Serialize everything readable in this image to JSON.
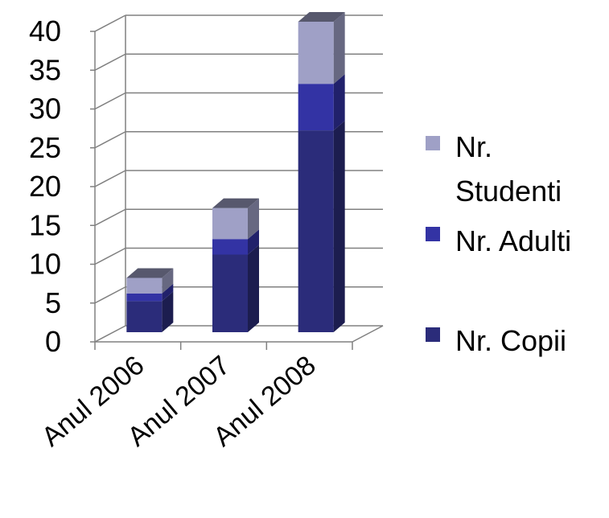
{
  "chart_data": {
    "type": "bar",
    "stacked": true,
    "three_d": true,
    "categories": [
      "Anul 2006",
      "Anul 2007",
      "Anul 2008"
    ],
    "series": [
      {
        "name": "Nr. Copii",
        "values": [
          4,
          10,
          26
        ],
        "color": "#2b2c7a"
      },
      {
        "name": "Nr. Adulti",
        "values": [
          1,
          2,
          6
        ],
        "color": "#3333a4"
      },
      {
        "name": "Nr. Studenti",
        "values": [
          2,
          4,
          8
        ],
        "color": "#9fa0c6"
      }
    ],
    "y_ticks": [
      0,
      5,
      10,
      15,
      20,
      25,
      30,
      35,
      40
    ],
    "ylim": [
      0,
      40
    ],
    "grid": true,
    "legend_position": "right",
    "legend_order": [
      "Nr. Studenti",
      "Nr. Adulti",
      "Nr. Copii"
    ],
    "legend_lines": {
      "Nr. Studenti": [
        "Nr.",
        "Studenti"
      ],
      "Nr. Adulti": [
        "Nr. Adulti"
      ],
      "Nr. Copii": [
        "Nr. Copii"
      ]
    }
  }
}
